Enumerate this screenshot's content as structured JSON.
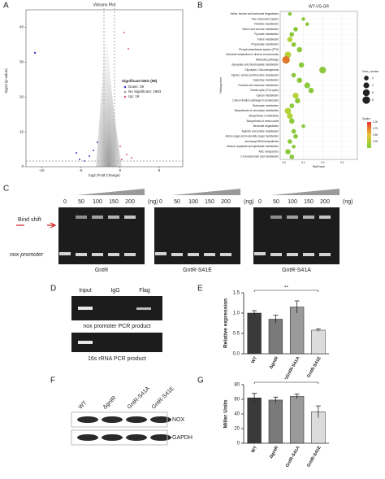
{
  "figure": {
    "panel_labels": [
      "A",
      "B",
      "C",
      "D",
      "E",
      "F",
      "G"
    ]
  },
  "gel_c": {
    "concentrations": [
      "0",
      "50",
      "100",
      "150",
      "200"
    ],
    "unit": "(ng)",
    "band_label": "Bind shift",
    "probe_label": "nox promoter",
    "proteins": [
      "GntR",
      "GntR-S41E",
      "GntR-S41A"
    ]
  },
  "chip_d": {
    "lanes": [
      "Input",
      "IgG",
      "Flag"
    ],
    "captions": [
      "nox promoter PCR product",
      "16s rRNA PCR product"
    ]
  },
  "blot_f": {
    "strains": [
      "WT",
      "ΔgntR",
      "GntR-S41A",
      "GntR-S41E"
    ],
    "proteins": [
      "NOX",
      "GAPDH"
    ]
  },
  "chart_data": [
    {
      "type": "volcano",
      "title": "Volcano Plot",
      "xlabel": "log2 (Fold Change)",
      "ylabel": "-log10 (p-value)",
      "xlim": [
        -12,
        8
      ],
      "xticks": [
        -10,
        -5,
        0,
        5
      ],
      "ylim": [
        0,
        45
      ],
      "yticks": [
        0,
        10,
        20,
        30,
        40
      ],
      "legend_title": "Significant DEG (58)",
      "legend": [
        "Down: 39",
        "No Significant: 1983",
        "Up: 19"
      ],
      "legend_colors": [
        "#3f3fd0",
        "#9a9a9a",
        "#e05a80"
      ]
    },
    {
      "type": "bubble",
      "title": "WT-VS-GR",
      "xlabel": "RichFactor",
      "ylabel": "Pathway term",
      "categories": [
        "Valine, leucine and isoleucine degradation",
        "Two-component system",
        "Thiamine metabolism",
        "Starch and sucrose metabolism",
        "Pyruvate metabolism",
        "Purine metabolism",
        "Propanoate metabolism",
        "Phosphotransferase system (PTS)",
        "Microbial metabolism in diverse environments",
        "Metabolic pathways",
        "Glyoxylate and dicarboxylate metabolism",
        "Glycolysis / Gluconeogenesis",
        "Glycine, serine and threonine metabolism",
        "Galactose metabolism",
        "Fructose and mannose metabolism",
        "Citrate cycle (TCA cycle)",
        "Carbon metabolism",
        "Carbon fixation pathways in prokaryotes",
        "Butanoate metabolism",
        "Biosynthesis of secondary metabolites",
        "Biosynthesis of antibiotics",
        "Biosynthesis of amino acids",
        "Benzoate degradation",
        "Arginine and proline metabolism",
        "Amino sugar and nucleotide sugar metabolism",
        "Aminoacyl-tRNA biosynthesis",
        "Alanine, aspartate and glutamate metabolism",
        "ABC transporters",
        "2-Oxocarboxylic acid metabolism"
      ],
      "values": [
        0.03,
        0.1,
        0.12,
        0.06,
        0.04,
        0.03,
        0.05,
        0.08,
        0.02,
        0.01,
        0.09,
        0.2,
        0.05,
        0.08,
        0.12,
        0.14,
        0.06,
        0.07,
        0.04,
        0.02,
        0.03,
        0.04,
        0.1,
        0.05,
        0.06,
        0.03,
        0.05,
        0.02,
        0.04
      ],
      "sizes": [
        1,
        1,
        1,
        2,
        2,
        3,
        2,
        3,
        5,
        8,
        3,
        6,
        2,
        3,
        4,
        3,
        4,
        3,
        2,
        5,
        4,
        3,
        1,
        2,
        2,
        2,
        1,
        3,
        2
      ],
      "colors": [
        "#8cc83c",
        "#8cc83c",
        "#8cc83c",
        "#8cc83c",
        "#8cc83c",
        "#b4d23a",
        "#8cc83c",
        "#8cc83c",
        "#b4d23a",
        "#e0782a",
        "#8cc83c",
        "#8cc83c",
        "#8cc83c",
        "#8cc83c",
        "#8cc83c",
        "#8cc83c",
        "#b4d23a",
        "#8cc83c",
        "#8cc83c",
        "#b4d23a",
        "#b4d23a",
        "#8cc83c",
        "#8cc83c",
        "#8cc83c",
        "#8cc83c",
        "#8cc83c",
        "#8cc83c",
        "#8cc83c",
        "#8cc83c"
      ],
      "xlim": [
        -0.02,
        0.38
      ],
      "xticks": [
        {
          "value": 0,
          "label": "0.0"
        },
        0.1,
        0.2,
        0.3
      ],
      "size_title": "Gene_number",
      "size_ticks": [
        2,
        4,
        6,
        8
      ],
      "color_title": "Qvalue",
      "color_ticks": [
        {
          "value": 1,
          "label": "1.00"
        },
        {
          "value": 0.75,
          "label": "0.75"
        },
        {
          "value": 0.5,
          "label": "0.50"
        },
        {
          "value": 0.25,
          "label": "0.25"
        }
      ]
    },
    {
      "type": "bar",
      "ylabel": "Relative expression",
      "categories": [
        "WT",
        "ΔgntR",
        "GntR-S41A",
        "GntR-S41E"
      ],
      "values": [
        1.0,
        0.85,
        1.15,
        0.58
      ],
      "errors": [
        0.06,
        0.1,
        0.15,
        0.03
      ],
      "colors": [
        "#3a3a3a",
        "#7a7a7a",
        "#9a9a9a",
        "#dcdcdc"
      ],
      "ylim": [
        0,
        1.5
      ],
      "yticks": [
        {
          "value": 0,
          "label": "0.0"
        },
        0.5,
        {
          "value": 1,
          "label": "1.0"
        },
        1.5
      ],
      "significance": "**"
    },
    {
      "type": "bar",
      "ylabel": "Miller Units",
      "categories": [
        "WT",
        "ΔgntR",
        "GntR-S41A",
        "GntR-S41E"
      ],
      "values": [
        62,
        59,
        64,
        43
      ],
      "errors": [
        6,
        4,
        3,
        8
      ],
      "colors": [
        "#3a3a3a",
        "#7a7a7a",
        "#9a9a9a",
        "#dcdcdc"
      ],
      "ylim": [
        0,
        80
      ],
      "yticks": [
        0,
        20,
        40,
        60,
        80
      ],
      "significance": "**"
    }
  ]
}
